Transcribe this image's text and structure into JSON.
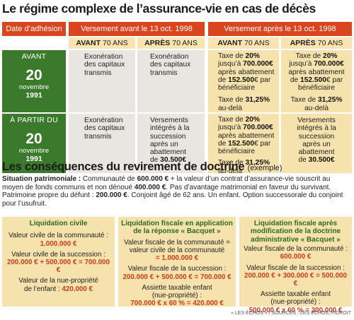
{
  "title": "Le régime complexe de l’assurance-vie en cas de décès",
  "table": {
    "col_header": "Date d’adhésion",
    "group_before": "Versement avant le 13 oct. 1998",
    "group_after": "Versement après le 13 oct. 1998",
    "sub_before_strong": "AVANT",
    "sub_after_strong": "APRÈS",
    "sub_age": "70 ANS",
    "row1": {
      "label": "AVANT",
      "day": "20",
      "month": "novembre",
      "year": "1991",
      "before_before": "Exonération des capitaux transmis",
      "before_after": "Exonération des capitaux transmis",
      "after_before": {
        "l1": "Taxe de ",
        "v1": "20",
        "u1": "%",
        "l2": "jusqu’à ",
        "v2": "700.000",
        "u2": "€",
        "l3": "après abattement",
        "l4": "de ",
        "v4": "152.500",
        "u4": "€ par",
        "l5": "bénéficiaire",
        "l6": "Taxe de ",
        "v6": "31,25",
        "u6": "%",
        "l7": "au-delà"
      },
      "after_after": {
        "l1": "Taxe de ",
        "v1": "20",
        "u1": "%",
        "l2": "jusqu’à ",
        "v2": "700.000",
        "u2": "€",
        "l3": "après abattement",
        "l4": "de ",
        "v4": "152.500",
        "u4": "€ par",
        "l5": "bénéficiaire",
        "l6": "Taxe de ",
        "v6": "31,25",
        "u6": "%",
        "l7": "au-delà"
      }
    },
    "row2": {
      "label": "À PARTIR DU",
      "day": "20",
      "month": "novembre",
      "year": "1991",
      "before_before": "Exonération des capitaux transmis",
      "before_after": {
        "l1": "Versements",
        "l2": "intégrés à la",
        "l3": "succession",
        "l4": "après un",
        "l5": "abattement",
        "l6": "de ",
        "v6": "30.500",
        "u6": "€"
      },
      "after_before": {
        "l1": "Taxe de ",
        "v1": "20",
        "u1": "%",
        "l2": "jusqu’à ",
        "v2": "700.000",
        "u2": "€",
        "l3": "après abattement",
        "l4": "de ",
        "v4": "152.500",
        "u4": "€ par",
        "l5": "bénéficiaire",
        "l6": "Taxe de ",
        "v6": "31,25",
        "u6": "%",
        "l7": "au-delà"
      },
      "after_after": {
        "l1": "Versements",
        "l2": "intégrés à la",
        "l3": "succession",
        "l4": "après un",
        "l5": "abattement",
        "l6": "de ",
        "v6": "30.500",
        "u6": "€"
      }
    }
  },
  "section2": {
    "title": "Les conséquences du revirement de doctrine",
    "title_note": "(exemple)",
    "situation_label": "Situation patrimoniale :",
    "situation_t1": " Communauté de ",
    "situation_v1": "600.000 €",
    "situation_t2": " + la valeur d’un contrat d’assurance-vie souscrit au moyen de fonds communs et non dénoué ",
    "situation_v2": "400.000 €",
    "situation_t3": ". Pas d’avantage matrimonial en faveur du survivant. Patrimoine propre du défunt : ",
    "situation_v3": "200.000 €",
    "situation_t4": ". Conjoint âgé de 62 ans. Un enfant. Option successorale du conjoint pour l’usufruit."
  },
  "liq1": {
    "title": "Liquidation civile",
    "a1": "Valeur civile de la communauté :",
    "a1v": "1.000.000 €",
    "a2": "Valeur civile de la succession :",
    "a2v": "200.000 € + 500.000 € = 700.000 €",
    "a3": "Valeur de la nue-propriété de l’enfant :",
    "a3v": "420.000 €"
  },
  "liq2": {
    "title": "Liquidation fiscale en application de la réponse « Bacquet »",
    "a1": "Valeur fiscale de la communauté = valeur civile de la communauté",
    "a1v": "= 1.000.000 €",
    "a2": "Valeur fiscale de la succession :",
    "a2v": "200.000 € + 500.000 € = 700.000 €",
    "a3": "Assiette taxable enfant (nue-propriété) :",
    "a3v": "700.000 € x 60 % = 420.000 €"
  },
  "liq3": {
    "title": "Liquidation fiscale après modification de la doctrine administrative « Bacquet »",
    "a1": "Valeur fiscale de la communauté :",
    "a1v": "600.000 €",
    "a2": "Valeur fiscale de la succession :",
    "a2v": "200.000 € + 300.000 € = 500.000 €",
    "a3": "Assiette taxable enfant (nue-propriété) :",
    "a3v": "500.000 € x 60 % = 300.000 €"
  },
  "source": "« LES ÉCHOS » / SOURCES : LES ÉCHOS, FIDROIT",
  "colors": {
    "accent_red": "#d8451f",
    "green": "#3b7a2c",
    "cream": "#f6e2ad",
    "grey": "#e9e6e1"
  }
}
